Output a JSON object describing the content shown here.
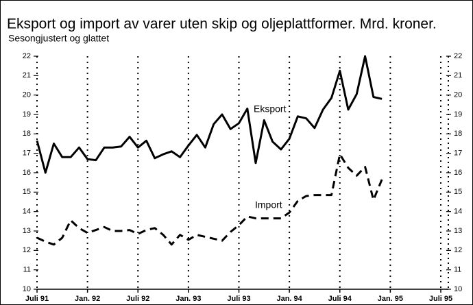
{
  "chart_data": {
    "type": "line",
    "title": "Eksport og import av varer uten skip og oljeplattformer. Mrd. kroner.",
    "subtitle": "Sesongjustert og glattet",
    "categories": [
      "Juli 91",
      null,
      null,
      null,
      null,
      null,
      "Jan. 92",
      null,
      null,
      null,
      null,
      null,
      "Juli 92",
      null,
      null,
      null,
      null,
      null,
      "Jan. 93",
      null,
      null,
      null,
      null,
      null,
      "Juli 93",
      null,
      null,
      null,
      null,
      null,
      "Jan. 94",
      null,
      null,
      null,
      null,
      null,
      "Juli 94",
      null,
      null,
      null,
      null,
      null,
      "Jan. 95",
      null,
      null,
      null,
      null,
      null,
      "Juli 95"
    ],
    "series": [
      {
        "name": "Eksport",
        "color": "#000000",
        "dash": false,
        "values": [
          17.65,
          16.0,
          17.5,
          16.8,
          16.8,
          17.3,
          16.7,
          16.65,
          17.3,
          17.3,
          17.35,
          17.85,
          17.3,
          17.65,
          16.75,
          16.95,
          17.1,
          16.8,
          17.4,
          17.95,
          17.3,
          18.5,
          19.0,
          18.25,
          18.55,
          19.3,
          16.5,
          18.7,
          17.6,
          17.2,
          17.75,
          18.9,
          18.8,
          18.3,
          19.25,
          19.85,
          21.25,
          19.25,
          20.05,
          22.0,
          19.9,
          19.8,
          null,
          null,
          null,
          null,
          null,
          null,
          null
        ]
      },
      {
        "name": "Import",
        "color": "#000000",
        "dash": true,
        "values": [
          12.65,
          12.45,
          12.3,
          12.65,
          13.55,
          13.15,
          12.9,
          13.05,
          13.2,
          13.0,
          13.0,
          13.05,
          12.85,
          13.05,
          13.15,
          12.8,
          12.3,
          12.8,
          12.55,
          12.8,
          12.7,
          12.6,
          12.5,
          12.95,
          13.3,
          13.75,
          13.65,
          13.65,
          13.65,
          13.65,
          13.95,
          14.55,
          14.8,
          14.85,
          14.85,
          14.85,
          16.95,
          16.25,
          15.85,
          16.3,
          14.6,
          15.65,
          null,
          null,
          null,
          null,
          null,
          null,
          null
        ]
      }
    ],
    "ylim": [
      10,
      22
    ],
    "yticks": [
      10,
      11,
      12,
      13,
      14,
      15,
      16,
      17,
      18,
      19,
      20,
      21,
      22
    ],
    "grid": false
  }
}
